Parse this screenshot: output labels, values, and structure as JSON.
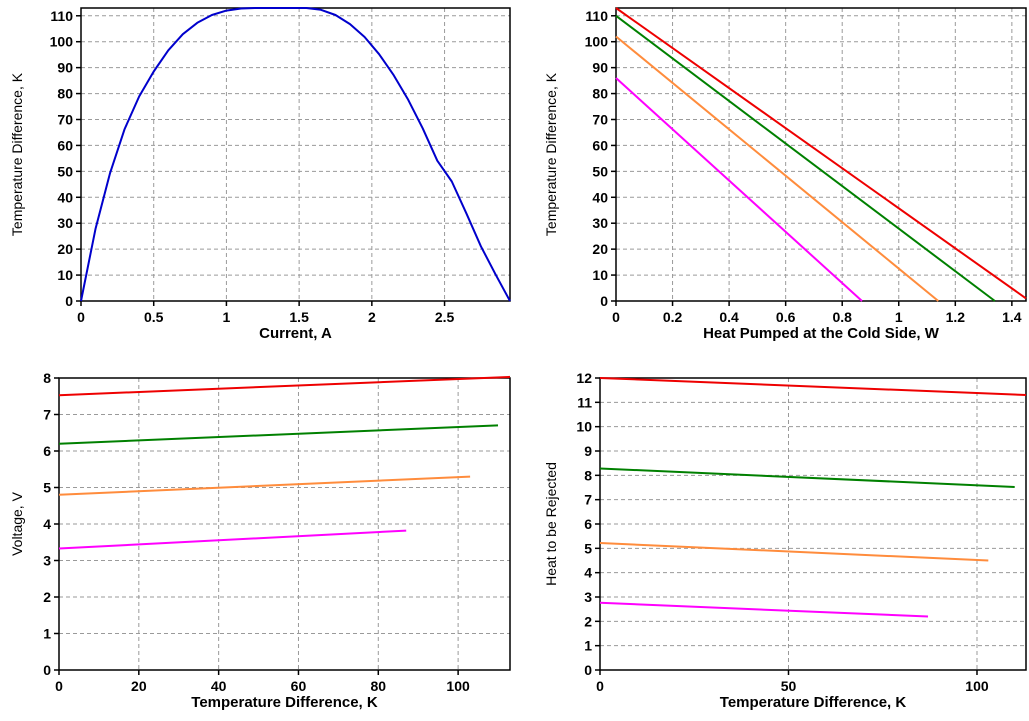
{
  "chart_data": [
    {
      "type": "line",
      "xlabel": "Current, A",
      "ylabel": "Temperature Difference, K",
      "xlim": [
        0,
        2.95
      ],
      "ylim": [
        0,
        113
      ],
      "xticks": [
        0,
        0.5,
        1,
        1.5,
        2,
        2.5
      ],
      "xtick_labels": [
        "0",
        "0.5",
        "1",
        "1.5",
        "2",
        "2.5"
      ],
      "yticks": [
        0,
        10,
        20,
        30,
        40,
        50,
        60,
        70,
        80,
        90,
        100,
        110
      ],
      "ytick_labels": [
        "0",
        "10",
        "20",
        "30",
        "40",
        "50",
        "60",
        "70",
        "80",
        "90",
        "100",
        "110"
      ],
      "grid": true,
      "series": [
        {
          "color": "#0000cc",
          "x": [
            0,
            0.1,
            0.2,
            0.3,
            0.4,
            0.5,
            0.6,
            0.7,
            0.8,
            0.9,
            1.0,
            1.1,
            1.2,
            1.3,
            1.4,
            1.475,
            1.55,
            1.65,
            1.75,
            1.85,
            1.95,
            2.05,
            2.15,
            2.25,
            2.35,
            2.45,
            2.55,
            2.65,
            2.75,
            2.85,
            2.95
          ],
          "y": [
            0,
            27.8,
            49.4,
            66.3,
            78.9,
            88.5,
            96.7,
            102.9,
            107.3,
            110.3,
            112.0,
            112.8,
            113.0,
            113.0,
            113.0,
            113.0,
            113.0,
            112.3,
            110.3,
            106.8,
            101.8,
            95.2,
            87.1,
            77.6,
            66.6,
            54.1,
            46.1,
            33.8,
            21.1,
            10.3,
            0
          ]
        }
      ]
    },
    {
      "type": "line",
      "xlabel": "Heat Pumped at the Cold Side, W",
      "ylabel": "Temperature Difference, K",
      "xlim": [
        0,
        1.45
      ],
      "ylim": [
        0,
        113
      ],
      "xticks": [
        0,
        0.2,
        0.4,
        0.6,
        0.8,
        1,
        1.2,
        1.4
      ],
      "xtick_labels": [
        "0",
        "0.2",
        "0.4",
        "0.6",
        "0.8",
        "1",
        "1.2",
        "1.4"
      ],
      "yticks": [
        0,
        10,
        20,
        30,
        40,
        50,
        60,
        70,
        80,
        90,
        100,
        110
      ],
      "ytick_labels": [
        "0",
        "10",
        "20",
        "30",
        "40",
        "50",
        "60",
        "70",
        "80",
        "90",
        "100",
        "110"
      ],
      "grid": true,
      "series": [
        {
          "color": "#ee0000",
          "x": [
            0,
            1.45
          ],
          "y": [
            113,
            1
          ]
        },
        {
          "color": "#008000",
          "x": [
            0,
            1.34
          ],
          "y": [
            110,
            0
          ]
        },
        {
          "color": "#ff8c3c",
          "x": [
            0,
            1.14
          ],
          "y": [
            102,
            0
          ]
        },
        {
          "color": "#ff00ff",
          "x": [
            0,
            0.87
          ],
          "y": [
            86,
            0
          ]
        }
      ]
    },
    {
      "type": "line",
      "xlabel": "Temperature Difference, K",
      "ylabel": "Voltage, V",
      "xlim": [
        0,
        113
      ],
      "ylim": [
        0,
        8
      ],
      "xticks": [
        0,
        20,
        40,
        60,
        80,
        100
      ],
      "xtick_labels": [
        "0",
        "20",
        "40",
        "60",
        "80",
        "100"
      ],
      "yticks": [
        0,
        1,
        2,
        3,
        4,
        5,
        6,
        7,
        8
      ],
      "ytick_labels": [
        "0",
        "1",
        "2",
        "3",
        "4",
        "5",
        "6",
        "7",
        "8"
      ],
      "grid": true,
      "series": [
        {
          "color": "#ee0000",
          "x": [
            0,
            113
          ],
          "y": [
            7.53,
            8.03
          ]
        },
        {
          "color": "#008000",
          "x": [
            0,
            110
          ],
          "y": [
            6.2,
            6.7
          ]
        },
        {
          "color": "#ff8c3c",
          "x": [
            0,
            103
          ],
          "y": [
            4.8,
            5.3
          ]
        },
        {
          "color": "#ff00ff",
          "x": [
            0,
            87
          ],
          "y": [
            3.33,
            3.82
          ]
        }
      ]
    },
    {
      "type": "line",
      "xlabel": "Temperature Difference, K",
      "ylabel": "Heat to be Rejected",
      "xlim": [
        0,
        113
      ],
      "ylim": [
        0,
        12
      ],
      "xticks": [
        0,
        50,
        100
      ],
      "xtick_labels": [
        "0",
        "50",
        "100"
      ],
      "yticks": [
        0,
        1,
        2,
        3,
        4,
        5,
        6,
        7,
        8,
        9,
        10,
        11,
        12
      ],
      "ytick_labels": [
        "0",
        "1",
        "2",
        "3",
        "4",
        "5",
        "6",
        "7",
        "8",
        "9",
        "10",
        "11",
        "12"
      ],
      "grid": true,
      "series": [
        {
          "color": "#ee0000",
          "x": [
            0,
            113
          ],
          "y": [
            12.0,
            11.3
          ]
        },
        {
          "color": "#008000",
          "x": [
            0,
            110
          ],
          "y": [
            8.28,
            7.52
          ]
        },
        {
          "color": "#ff8c3c",
          "x": [
            0,
            103
          ],
          "y": [
            5.22,
            4.5
          ]
        },
        {
          "color": "#ff00ff",
          "x": [
            0,
            87
          ],
          "y": [
            2.76,
            2.2
          ]
        }
      ]
    }
  ]
}
